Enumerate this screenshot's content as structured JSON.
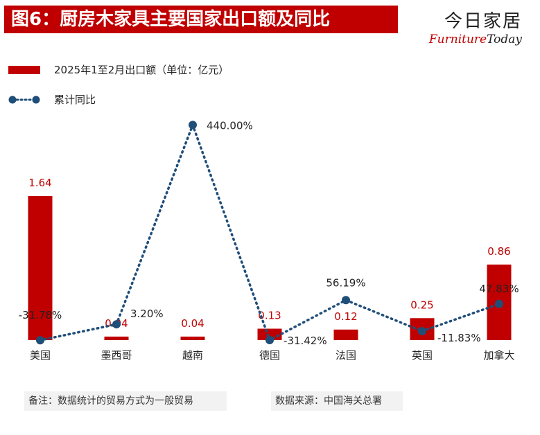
{
  "title": "图6：厨房木家具主要国家出口额及同比",
  "logo": {
    "cn": "今日家居",
    "en_furniture": "Furniture",
    "en_today": "Today"
  },
  "footnotes": {
    "left": "备注：数据统计的贸易方式为一般贸易",
    "right": "数据来源：中国海关总署"
  },
  "colors": {
    "bar": "#c00000",
    "line": "#1f4e79",
    "bar_label": "#c00000"
  },
  "chart_data": {
    "type": "bar",
    "categories": [
      "美国",
      "墨西哥",
      "越南",
      "德国",
      "法国",
      "英国",
      "加拿大"
    ],
    "series": [
      {
        "name": "2025年1至2月出口额（单位：亿元）",
        "type": "bar",
        "values": [
          1.64,
          0.04,
          0.04,
          0.13,
          0.12,
          0.25,
          0.86
        ],
        "labels": [
          "1.64",
          "0.04",
          "0.04",
          "0.13",
          "0.12",
          "0.25",
          "0.86"
        ]
      },
      {
        "name": "累计同比",
        "type": "line",
        "style": "dotted",
        "values": [
          -31.78,
          3.2,
          440.0,
          -31.42,
          56.19,
          -11.83,
          47.83
        ],
        "labels": [
          "-31.78%",
          "3.20%",
          "440.00%",
          "-31.42%",
          "56.19%",
          "-11.83%",
          "47.83%"
        ]
      }
    ],
    "legend_position": "top-left",
    "grid": false
  }
}
